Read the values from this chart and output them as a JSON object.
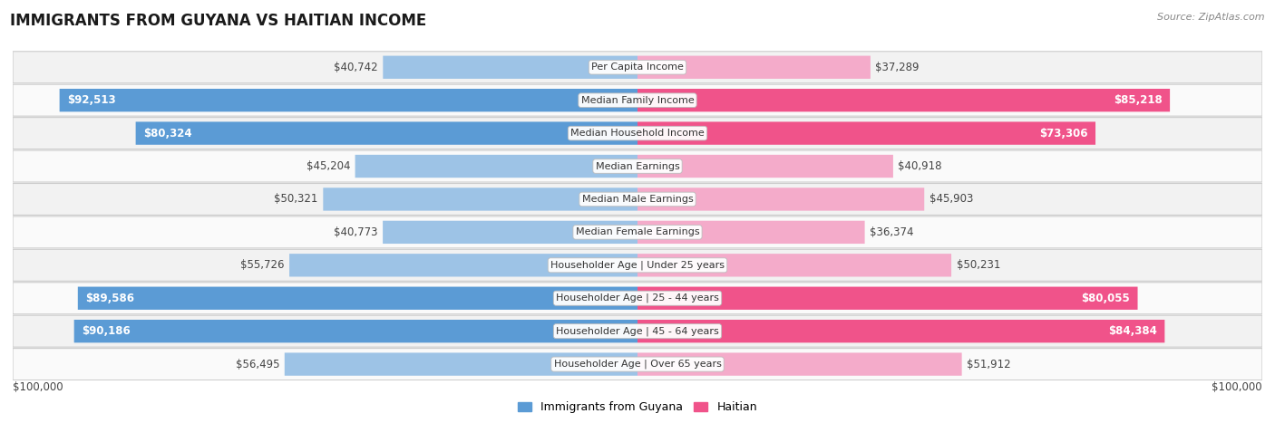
{
  "title": "IMMIGRANTS FROM GUYANA VS HAITIAN INCOME",
  "source": "Source: ZipAtlas.com",
  "categories": [
    "Per Capita Income",
    "Median Family Income",
    "Median Household Income",
    "Median Earnings",
    "Median Male Earnings",
    "Median Female Earnings",
    "Householder Age | Under 25 years",
    "Householder Age | 25 - 44 years",
    "Householder Age | 45 - 64 years",
    "Householder Age | Over 65 years"
  ],
  "guyana_values": [
    40742,
    92513,
    80324,
    45204,
    50321,
    40773,
    55726,
    89586,
    90186,
    56495
  ],
  "haitian_values": [
    37289,
    85218,
    73306,
    40918,
    45903,
    36374,
    50231,
    80055,
    84384,
    51912
  ],
  "guyana_labels": [
    "$40,742",
    "$92,513",
    "$80,324",
    "$45,204",
    "$50,321",
    "$40,773",
    "$55,726",
    "$89,586",
    "$90,186",
    "$56,495"
  ],
  "haitian_labels": [
    "$37,289",
    "$85,218",
    "$73,306",
    "$40,918",
    "$45,903",
    "$36,374",
    "$50,231",
    "$80,055",
    "$84,384",
    "$51,912"
  ],
  "max_value": 100000,
  "guyana_dark": "#5B9BD5",
  "guyana_light": "#9DC3E6",
  "haitian_dark": "#F0538A",
  "haitian_light": "#F4ABCA",
  "guyana_legend": "Immigrants from Guyana",
  "haitian_legend": "Haitian",
  "row_bg_odd": "#F2F2F2",
  "row_bg_even": "#FAFAFA",
  "xlabel_left": "$100,000",
  "xlabel_right": "$100,000",
  "label_threshold": 65000
}
